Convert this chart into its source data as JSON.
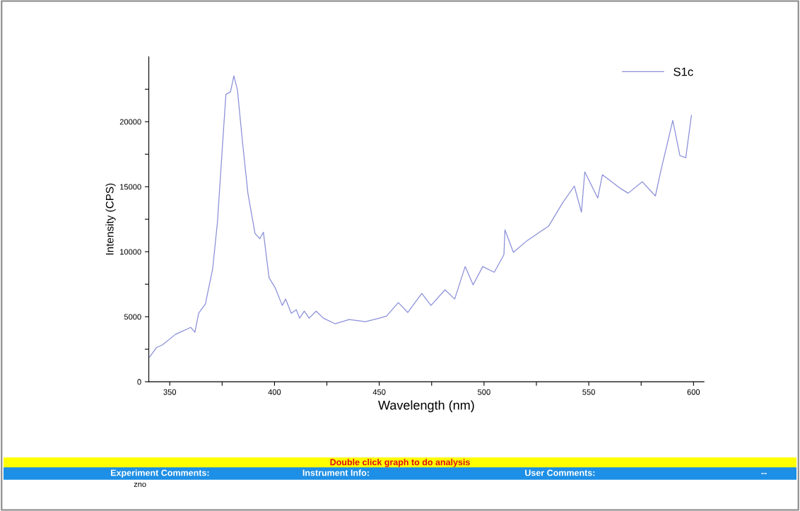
{
  "chart_data": {
    "type": "line",
    "xlabel": "Wavelength (nm)",
    "ylabel": "Intensity (CPS)",
    "xlim": [
      340,
      605
    ],
    "ylim": [
      0,
      25000
    ],
    "xticks": [
      350,
      {
        "value": 375,
        "label": null
      },
      400,
      {
        "value": 425,
        "label": null
      },
      450,
      {
        "value": 475,
        "label": null
      },
      500,
      {
        "value": 525,
        "label": null
      },
      550,
      {
        "value": 575,
        "label": null
      },
      600
    ],
    "yticks": [
      0,
      {
        "value": 2500,
        "label": null
      },
      5000,
      {
        "value": 7500,
        "label": null
      },
      10000,
      {
        "value": 12500,
        "label": null
      },
      15000,
      {
        "value": 17500,
        "label": null
      },
      20000,
      {
        "value": 22500,
        "label": null
      }
    ],
    "grid": false,
    "legend": "top right",
    "series": [
      {
        "name": "S1c",
        "color": "#8a8fd8",
        "x": [
          340.4,
          343.7,
          346.5,
          352.7,
          360,
          362,
          363.8,
          367,
          370.5,
          372.8,
          375,
          376.8,
          379,
          380.6,
          382.3,
          384.6,
          387.3,
          390.7,
          393,
          394.7,
          397.4,
          400.3,
          403.7,
          405.3,
          408,
          410.4,
          412,
          414.2,
          416.5,
          419.9,
          423.3,
          428.9,
          435.6,
          443.4,
          450.1,
          453.5,
          459.1,
          463.6,
          470.3,
          474.7,
          481.4,
          486,
          491,
          494.8,
          499.4,
          504.9,
          509.5,
          510,
          514,
          520.7,
          530.8,
          537.5,
          543.1,
          546.5,
          548.1,
          554.3,
          556.5,
          565.4,
          568.8,
          575.5,
          581.8,
          584.5,
          590.1,
          593.5,
          596.3,
          599
        ],
        "values": [
          1900,
          2630,
          2830,
          3640,
          4180,
          3800,
          5270,
          5980,
          8700,
          12330,
          17770,
          22100,
          22300,
          23530,
          22450,
          18640,
          14500,
          11400,
          11000,
          11500,
          8000,
          7230,
          5870,
          6360,
          5270,
          5540,
          4890,
          5430,
          4890,
          5430,
          4890,
          4460,
          4780,
          4620,
          4890,
          5050,
          6090,
          5330,
          6790,
          5870,
          7070,
          6360,
          8860,
          7450,
          8860,
          8420,
          9780,
          11680,
          9950,
          10870,
          11960,
          13750,
          15050,
          13040,
          16140,
          14130,
          15920,
          14840,
          14500,
          15380,
          14290,
          16300,
          20100,
          17390,
          17230,
          20490
        ]
      }
    ],
    "annotations": [
      "Double click graph to do analysis",
      "Experiment Comments:",
      "Instrument Info:",
      "User Comments:",
      "--",
      "zno"
    ]
  }
}
